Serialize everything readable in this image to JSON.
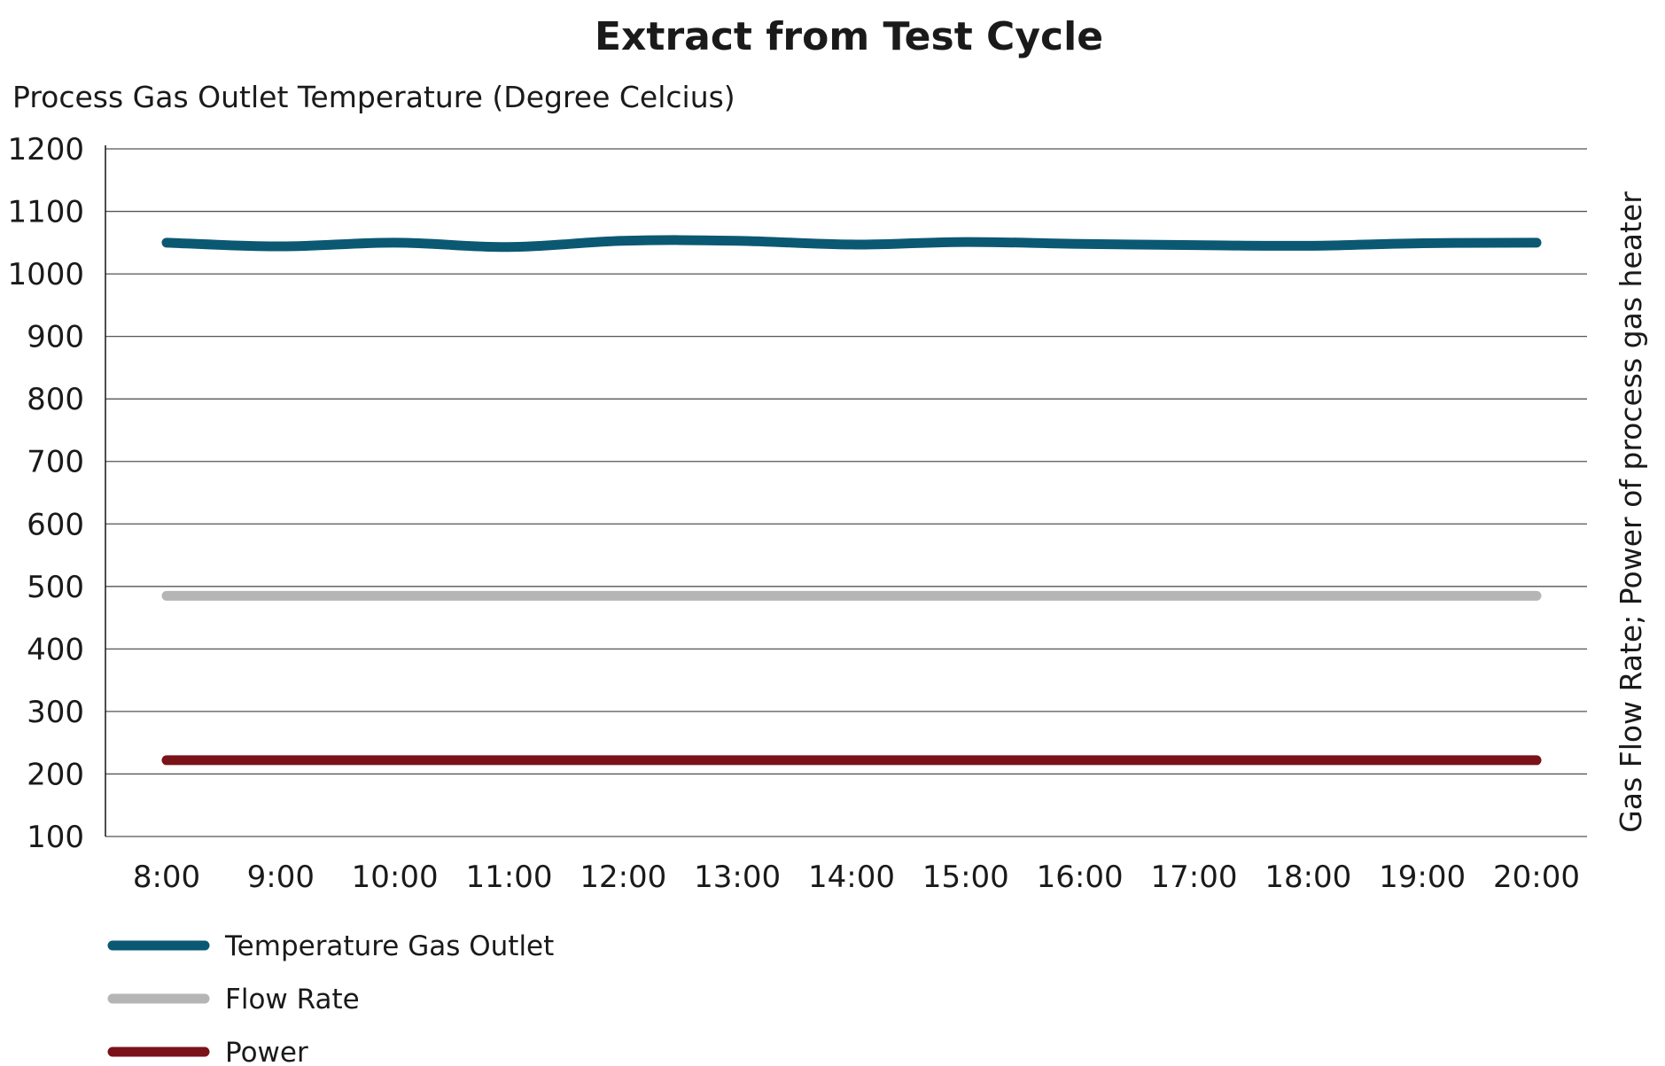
{
  "chart_data": {
    "type": "line",
    "title": "Extract from Test Cycle",
    "ylabel": "Process Gas Outlet Temperature (Degree Celcius)",
    "y2label": "Gas Flow Rate; Power of process gas heater",
    "xlabel": "",
    "ylim": [
      100,
      1200
    ],
    "yticks": [
      100,
      200,
      300,
      400,
      500,
      600,
      700,
      800,
      900,
      1000,
      1100,
      1200
    ],
    "grid": true,
    "legend_position": "bottom-left",
    "categories": [
      "8:00",
      "9:00",
      "10:00",
      "11:00",
      "12:00",
      "13:00",
      "14:00",
      "15:00",
      "16:00",
      "17:00",
      "18:00",
      "19:00",
      "20:00"
    ],
    "series": [
      {
        "name": "Temperature Gas Outlet",
        "color": "#0b5873",
        "values": [
          1050,
          1044,
          1050,
          1043,
          1053,
          1053,
          1047,
          1051,
          1048,
          1046,
          1045,
          1049,
          1050
        ]
      },
      {
        "name": "Flow Rate",
        "color": "#b5b5b5",
        "values": [
          485,
          485,
          485,
          485,
          485,
          485,
          485,
          485,
          485,
          485,
          485,
          485,
          485
        ]
      },
      {
        "name": "Power",
        "color": "#7a1219",
        "values": [
          222,
          222,
          222,
          222,
          222,
          222,
          222,
          222,
          222,
          222,
          222,
          222,
          222
        ]
      }
    ]
  }
}
